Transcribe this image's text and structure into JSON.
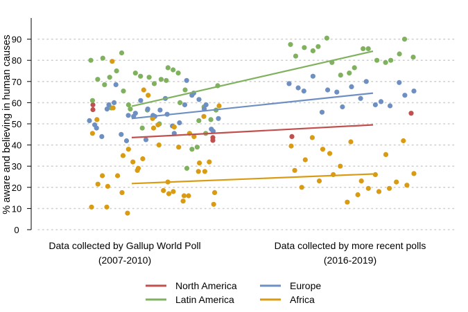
{
  "chart_data": {
    "type": "scatter",
    "ylabel": "% aware and believing in human causes",
    "ylim": [
      0,
      95
    ],
    "yticks": [
      0,
      10,
      20,
      30,
      40,
      50,
      60,
      70,
      80,
      90
    ],
    "categories": [
      {
        "line1": "Data collected by Gallup World Poll",
        "line2": "(2007-2010)"
      },
      {
        "line1": "Data collected by more recent polls",
        "line2": "(2016-2019)"
      }
    ],
    "grid": true,
    "grid_style": "dotted",
    "legend_position": "bottom",
    "series": [
      {
        "name": "North America",
        "color": "#c0504d",
        "trend": [
          43.5,
          49.5
        ],
        "points": [
          [
            0,
            59
          ],
          [
            0,
            56.7
          ],
          [
            0,
            43.5
          ],
          [
            0,
            42.2
          ],
          [
            1,
            44
          ],
          [
            1,
            55
          ]
        ]
      },
      {
        "name": "Latin America",
        "color": "#7fb15e",
        "trend": [
          58.3,
          84.3
        ],
        "points": [
          [
            0,
            80
          ],
          [
            0,
            61
          ],
          [
            0,
            71
          ],
          [
            0,
            81
          ],
          [
            0,
            68.5
          ],
          [
            0,
            72
          ],
          [
            0,
            57.5
          ],
          [
            0,
            75
          ],
          [
            0,
            83.5
          ],
          [
            0,
            65.5
          ],
          [
            0,
            59
          ],
          [
            0,
            57
          ],
          [
            0,
            74
          ],
          [
            0,
            72.5
          ],
          [
            0,
            48
          ],
          [
            0,
            56.5
          ],
          [
            0,
            72
          ],
          [
            0,
            69
          ],
          [
            0,
            50
          ],
          [
            0,
            71
          ],
          [
            0,
            70.5
          ],
          [
            0,
            76.5
          ],
          [
            0,
            75.5
          ],
          [
            0,
            74
          ],
          [
            0,
            60
          ],
          [
            0,
            66
          ],
          [
            0,
            29
          ],
          [
            0,
            38
          ],
          [
            0,
            39
          ],
          [
            0,
            51.5
          ],
          [
            0,
            58
          ],
          [
            0,
            45.5
          ],
          [
            0,
            52
          ],
          [
            0,
            56.5
          ],
          [
            0,
            68
          ],
          [
            1,
            87.5
          ],
          [
            1,
            82
          ],
          [
            1,
            86
          ],
          [
            1,
            84.5
          ],
          [
            1,
            86.5
          ],
          [
            1,
            90.5
          ],
          [
            1,
            79
          ],
          [
            1,
            73
          ],
          [
            1,
            74
          ],
          [
            1,
            76.5
          ],
          [
            1,
            85.5
          ],
          [
            1,
            85.5
          ],
          [
            1,
            80
          ],
          [
            1,
            79
          ],
          [
            1,
            80
          ],
          [
            1,
            83
          ],
          [
            1,
            90
          ],
          [
            1,
            81.5
          ]
        ]
      },
      {
        "name": "Europe",
        "color": "#6d8fc1",
        "trend": [
          52.5,
          64.5
        ],
        "points": [
          [
            0,
            51.5
          ],
          [
            0,
            49.5
          ],
          [
            0,
            48
          ],
          [
            0,
            44
          ],
          [
            0,
            57
          ],
          [
            0,
            59
          ],
          [
            0,
            60
          ],
          [
            0,
            68.5
          ],
          [
            0,
            45
          ],
          [
            0,
            42
          ],
          [
            0,
            54
          ],
          [
            0,
            53.5
          ],
          [
            0,
            55
          ],
          [
            0,
            61
          ],
          [
            0,
            42.5
          ],
          [
            0,
            57
          ],
          [
            0,
            54
          ],
          [
            0,
            53.5
          ],
          [
            0,
            56.5
          ],
          [
            0,
            62
          ],
          [
            0,
            54.5
          ],
          [
            0,
            49
          ],
          [
            0,
            45.5
          ],
          [
            0,
            50.5
          ],
          [
            0,
            59
          ],
          [
            0,
            70.5
          ],
          [
            0,
            63.5
          ],
          [
            0,
            64.5
          ],
          [
            0,
            61.5
          ],
          [
            0,
            57
          ],
          [
            0,
            59
          ],
          [
            0,
            47.5
          ],
          [
            0,
            46.5
          ],
          [
            0,
            52.5
          ],
          [
            1,
            69
          ],
          [
            1,
            67
          ],
          [
            1,
            65.5
          ],
          [
            1,
            72.5
          ],
          [
            1,
            55.5
          ],
          [
            1,
            66
          ],
          [
            1,
            65
          ],
          [
            1,
            58
          ],
          [
            1,
            67.5
          ],
          [
            1,
            62
          ],
          [
            1,
            70
          ],
          [
            1,
            59
          ],
          [
            1,
            60.5
          ],
          [
            1,
            58.5
          ],
          [
            1,
            69.5
          ],
          [
            1,
            63.5
          ],
          [
            1,
            65.5
          ]
        ]
      },
      {
        "name": "Africa",
        "color": "#d99b14",
        "trend": [
          21.8,
          26.3
        ],
        "points": [
          [
            0,
            10.7
          ],
          [
            0,
            45.5
          ],
          [
            0,
            52
          ],
          [
            0,
            21.5
          ],
          [
            0,
            25.5
          ],
          [
            0,
            10.7
          ],
          [
            0,
            20.5
          ],
          [
            0,
            79.5
          ],
          [
            0,
            57.5
          ],
          [
            0,
            25.5
          ],
          [
            0,
            17.5
          ],
          [
            0,
            35
          ],
          [
            0,
            7.8
          ],
          [
            0,
            38
          ],
          [
            0,
            32
          ],
          [
            0,
            28
          ],
          [
            0,
            29
          ],
          [
            0,
            33.5
          ],
          [
            0,
            66
          ],
          [
            0,
            63.5
          ],
          [
            0,
            52.5
          ],
          [
            0,
            48
          ],
          [
            0,
            49.5
          ],
          [
            0,
            40
          ],
          [
            0,
            18.5
          ],
          [
            0,
            22.5
          ],
          [
            0,
            17
          ],
          [
            0,
            18
          ],
          [
            0,
            48.5
          ],
          [
            0,
            39
          ],
          [
            0,
            13.5
          ],
          [
            0,
            16
          ],
          [
            0,
            16
          ],
          [
            0,
            45.5
          ],
          [
            0,
            44
          ],
          [
            0,
            27.5
          ],
          [
            0,
            31.5
          ],
          [
            0,
            53.5
          ],
          [
            0,
            27.5
          ],
          [
            0,
            32
          ],
          [
            0,
            12
          ],
          [
            0,
            17.5
          ],
          [
            0,
            58.5
          ],
          [
            1,
            39.5
          ],
          [
            1,
            28
          ],
          [
            1,
            20
          ],
          [
            1,
            33
          ],
          [
            1,
            43.5
          ],
          [
            1,
            23
          ],
          [
            1,
            38
          ],
          [
            1,
            36
          ],
          [
            1,
            26
          ],
          [
            1,
            30
          ],
          [
            1,
            13
          ],
          [
            1,
            41.5
          ],
          [
            1,
            16.5
          ],
          [
            1,
            23
          ],
          [
            1,
            19.5
          ],
          [
            1,
            26
          ],
          [
            1,
            18
          ],
          [
            1,
            35.5
          ],
          [
            1,
            19.5
          ],
          [
            1,
            22.5
          ],
          [
            1,
            42
          ],
          [
            1,
            21
          ],
          [
            1,
            26.5
          ]
        ]
      }
    ]
  }
}
